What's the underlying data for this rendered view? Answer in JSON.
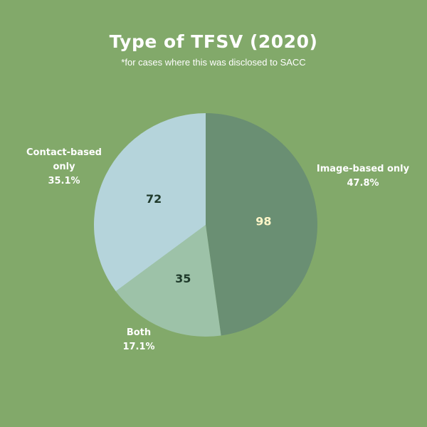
{
  "title": "Type of TFSV (2020)",
  "subtitle": "*for cases where this was disclosed to SACC",
  "colors": {
    "background": "#82a96a",
    "value_dark": "#1f3a2b",
    "value_light": "#fff6c8"
  },
  "chart_data": {
    "type": "pie",
    "start_angle_deg": 0,
    "direction": "clockwise",
    "slices": [
      {
        "key": "image",
        "label_lines": [
          "Image-based only"
        ],
        "percent": "47.8%",
        "value": 98,
        "value_text": "98",
        "color": "#6a8f73",
        "value_color": "#fff6c8"
      },
      {
        "key": "both",
        "label_lines": [
          "Both"
        ],
        "percent": "17.1%",
        "value": 35,
        "value_text": "35",
        "color": "#9dc2a8",
        "value_color": "#1f3a2b"
      },
      {
        "key": "contact",
        "label_lines": [
          "Contact-based",
          "only"
        ],
        "percent": "35.1%",
        "value": 72,
        "value_text": "72",
        "color": "#b5d4db",
        "value_color": "#1f3a2b"
      }
    ]
  }
}
